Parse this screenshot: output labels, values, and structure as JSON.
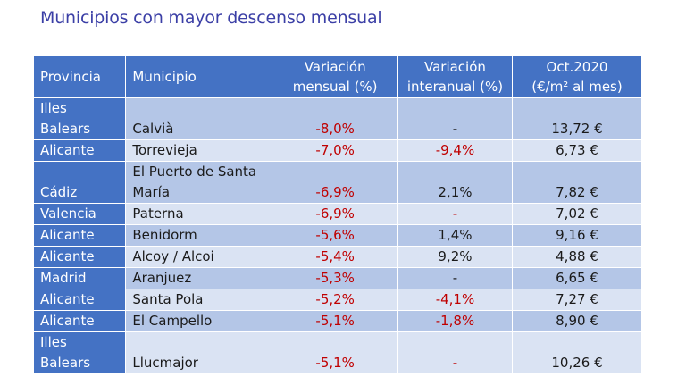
{
  "title": "Municipios con mayor descenso mensual",
  "headers": {
    "provincia": "Provincia",
    "municipio": "Municipio",
    "var_mensual_1": "Variación",
    "var_mensual_2": "mensual (%)",
    "var_interanual_1": "Variación",
    "var_interanual_2": "interanual (%)",
    "precio_1": "Oct.2020",
    "precio_2": "(€/m² al mes)"
  },
  "rows": [
    {
      "prov_1": "Illes",
      "prov_2": "Balears",
      "mun_1": "",
      "mun_2": "Calvià",
      "mensual": "-8,0%",
      "interanual": "-",
      "interanual_neg": false,
      "precio": "13,72 €"
    },
    {
      "prov_1": "Alicante",
      "prov_2": "",
      "mun_1": "Torrevieja",
      "mun_2": "",
      "mensual": "-7,0%",
      "interanual": "-9,4%",
      "interanual_neg": true,
      "precio": "6,73 €"
    },
    {
      "prov_1": "",
      "prov_2": "Cádiz",
      "mun_1": "El Puerto de Santa",
      "mun_2": "María",
      "mensual": "-6,9%",
      "interanual": "2,1%",
      "interanual_neg": false,
      "precio": "7,82 €"
    },
    {
      "prov_1": "Valencia",
      "prov_2": "",
      "mun_1": "Paterna",
      "mun_2": "",
      "mensual": "-6,9%",
      "interanual": "-",
      "interanual_neg": true,
      "precio": "7,02 €"
    },
    {
      "prov_1": "Alicante",
      "prov_2": "",
      "mun_1": "Benidorm",
      "mun_2": "",
      "mensual": "-5,6%",
      "interanual": "1,4%",
      "interanual_neg": false,
      "precio": "9,16 €"
    },
    {
      "prov_1": "Alicante",
      "prov_2": "",
      "mun_1": "Alcoy / Alcoi",
      "mun_2": "",
      "mensual": "-5,4%",
      "interanual": "9,2%",
      "interanual_neg": false,
      "precio": "4,88 €"
    },
    {
      "prov_1": "Madrid",
      "prov_2": "",
      "mun_1": "Aranjuez",
      "mun_2": "",
      "mensual": "-5,3%",
      "interanual": "-",
      "interanual_neg": false,
      "precio": "6,65 €"
    },
    {
      "prov_1": "Alicante",
      "prov_2": "",
      "mun_1": "Santa Pola",
      "mun_2": "",
      "mensual": "-5,2%",
      "interanual": "-4,1%",
      "interanual_neg": true,
      "precio": "7,27 €"
    },
    {
      "prov_1": "Alicante",
      "prov_2": "",
      "mun_1": "El Campello",
      "mun_2": "",
      "mensual": "-5,1%",
      "interanual": "-1,8%",
      "interanual_neg": true,
      "precio": "8,90 €"
    },
    {
      "prov_1": "Illes",
      "prov_2": "Balears",
      "mun_1": "",
      "mun_2": "Llucmajor",
      "mensual": "-5,1%",
      "interanual": "-",
      "interanual_neg": true,
      "precio": "10,26 €"
    }
  ],
  "colors": {
    "header_bg": "#4472c4",
    "row_odd": "#b4c6e7",
    "row_even": "#dae3f3",
    "negative": "#c00000",
    "title": "#3b3fa6"
  }
}
